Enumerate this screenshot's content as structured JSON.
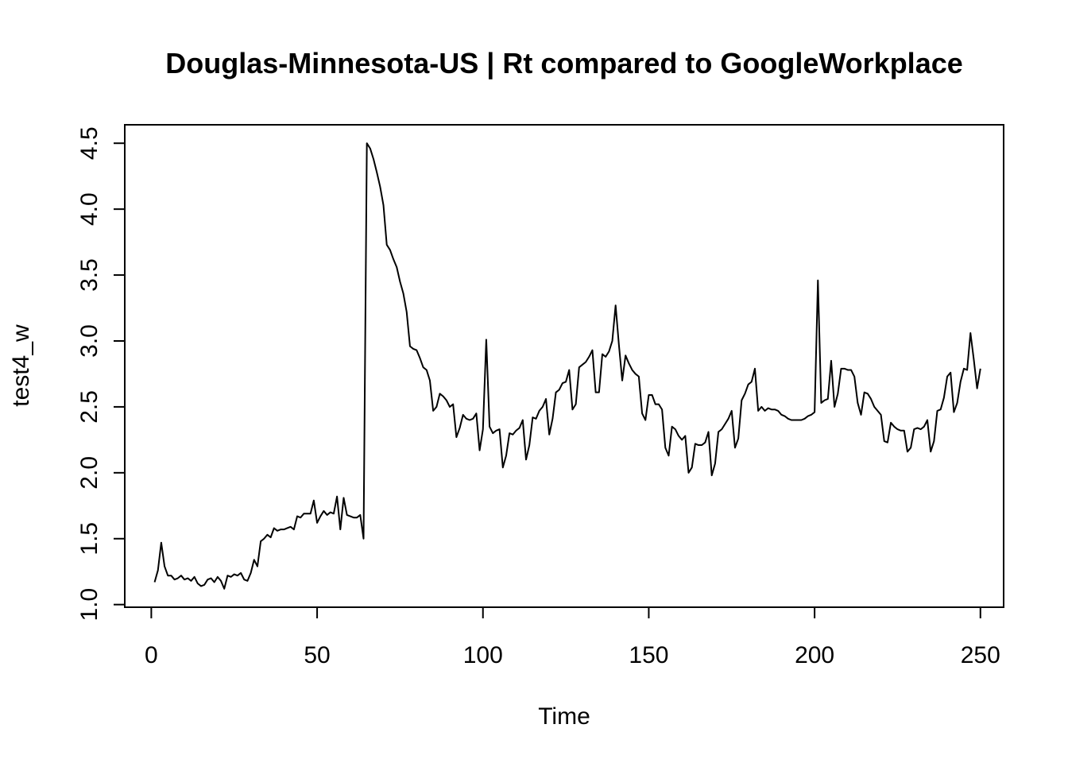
{
  "chart_data": {
    "type": "line",
    "title": "Douglas-Minnesota-US | Rt compared to GoogleWorkplace",
    "xlabel": "Time",
    "ylabel": "test4_w",
    "xlim": [
      -8,
      257
    ],
    "ylim": [
      0.98,
      4.64
    ],
    "x_ticks": [
      0,
      50,
      100,
      150,
      200,
      250
    ],
    "x_tick_labels": [
      "0",
      "50",
      "100",
      "150",
      "200",
      "250"
    ],
    "y_ticks": [
      1.0,
      1.5,
      2.0,
      2.5,
      3.0,
      3.5,
      4.0,
      4.5
    ],
    "y_tick_labels": [
      "1.0",
      "1.5",
      "2.0",
      "2.5",
      "3.0",
      "3.5",
      "4.0",
      "4.5"
    ],
    "grid": false,
    "legend": "none",
    "x_start": 1,
    "x_step": 1,
    "series": [
      {
        "color": "#000000",
        "values": [
          1.17,
          1.26,
          1.47,
          1.29,
          1.22,
          1.22,
          1.19,
          1.2,
          1.22,
          1.19,
          1.2,
          1.18,
          1.21,
          1.16,
          1.14,
          1.15,
          1.19,
          1.2,
          1.17,
          1.21,
          1.18,
          1.12,
          1.22,
          1.21,
          1.23,
          1.22,
          1.24,
          1.19,
          1.18,
          1.24,
          1.34,
          1.29,
          1.48,
          1.5,
          1.53,
          1.51,
          1.58,
          1.56,
          1.57,
          1.57,
          1.58,
          1.59,
          1.57,
          1.67,
          1.66,
          1.69,
          1.69,
          1.69,
          1.79,
          1.62,
          1.67,
          1.71,
          1.68,
          1.7,
          1.69,
          1.82,
          1.57,
          1.81,
          1.68,
          1.67,
          1.66,
          1.66,
          1.68,
          1.5,
          4.5,
          4.46,
          4.38,
          4.28,
          4.17,
          4.03,
          3.73,
          3.69,
          3.62,
          3.56,
          3.45,
          3.36,
          3.22,
          2.96,
          2.94,
          2.93,
          2.87,
          2.8,
          2.78,
          2.7,
          2.47,
          2.5,
          2.6,
          2.58,
          2.55,
          2.5,
          2.52,
          2.27,
          2.34,
          2.44,
          2.41,
          2.4,
          2.41,
          2.45,
          2.17,
          2.33,
          3.01,
          2.35,
          2.3,
          2.32,
          2.33,
          2.04,
          2.13,
          2.3,
          2.29,
          2.32,
          2.34,
          2.4,
          2.1,
          2.21,
          2.42,
          2.41,
          2.47,
          2.5,
          2.56,
          2.29,
          2.41,
          2.61,
          2.63,
          2.68,
          2.69,
          2.78,
          2.48,
          2.52,
          2.8,
          2.82,
          2.84,
          2.88,
          2.93,
          2.61,
          2.61,
          2.9,
          2.88,
          2.92,
          3.0,
          3.27,
          2.97,
          2.7,
          2.89,
          2.83,
          2.78,
          2.75,
          2.73,
          2.45,
          2.4,
          2.59,
          2.59,
          2.52,
          2.52,
          2.48,
          2.19,
          2.13,
          2.35,
          2.33,
          2.28,
          2.25,
          2.28,
          2.0,
          2.04,
          2.22,
          2.21,
          2.21,
          2.23,
          2.31,
          1.98,
          2.07,
          2.31,
          2.33,
          2.37,
          2.41,
          2.47,
          2.19,
          2.26,
          2.55,
          2.6,
          2.67,
          2.69,
          2.79,
          2.47,
          2.5,
          2.47,
          2.49,
          2.48,
          2.48,
          2.47,
          2.44,
          2.43,
          2.41,
          2.4,
          2.4,
          2.4,
          2.4,
          2.41,
          2.43,
          2.44,
          2.46,
          3.46,
          2.53,
          2.55,
          2.56,
          2.85,
          2.5,
          2.6,
          2.79,
          2.79,
          2.78,
          2.78,
          2.73,
          2.53,
          2.44,
          2.61,
          2.6,
          2.56,
          2.5,
          2.47,
          2.44,
          2.24,
          2.23,
          2.38,
          2.35,
          2.33,
          2.32,
          2.32,
          2.16,
          2.19,
          2.33,
          2.34,
          2.33,
          2.35,
          2.4,
          2.16,
          2.24,
          2.47,
          2.48,
          2.57,
          2.73,
          2.76,
          2.46,
          2.53,
          2.69,
          2.79,
          2.78,
          3.06,
          2.86,
          2.64,
          2.79
        ]
      }
    ]
  }
}
